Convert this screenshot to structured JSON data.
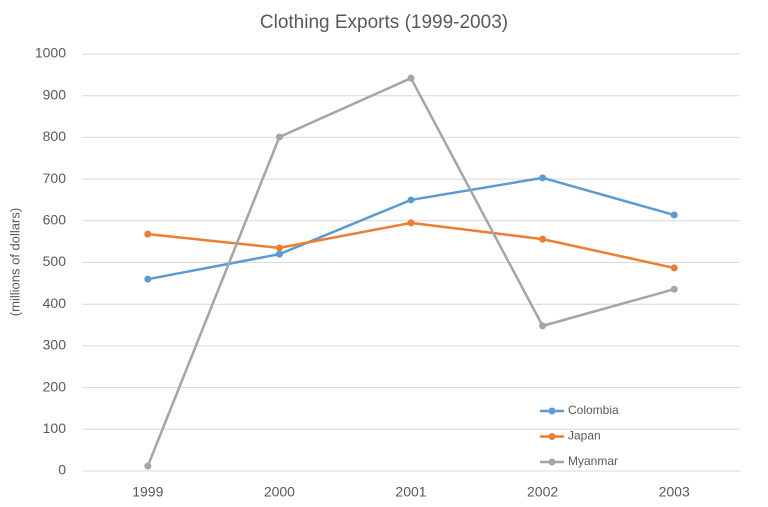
{
  "chart_data": {
    "type": "line",
    "title": "Clothing Exports (1999-2003)",
    "y_label": "(millions of dollars)",
    "categories": [
      "1999",
      "2000",
      "2001",
      "2002",
      "2003"
    ],
    "series": [
      {
        "name": "Colombia",
        "color": "#5b9bd5",
        "values": [
          460,
          520,
          650,
          703,
          614
        ]
      },
      {
        "name": "Japan",
        "color": "#ed7d31",
        "values": [
          568,
          535,
          595,
          556,
          487
        ]
      },
      {
        "name": "Myanmar",
        "color": "#a5a5a5",
        "values": [
          12,
          801,
          942,
          348,
          436
        ]
      }
    ],
    "ylim": [
      0,
      1000
    ],
    "yticks": [
      0,
      100,
      200,
      300,
      400,
      500,
      600,
      700,
      800,
      900,
      1000
    ],
    "grid": true,
    "legend": "lower right"
  }
}
